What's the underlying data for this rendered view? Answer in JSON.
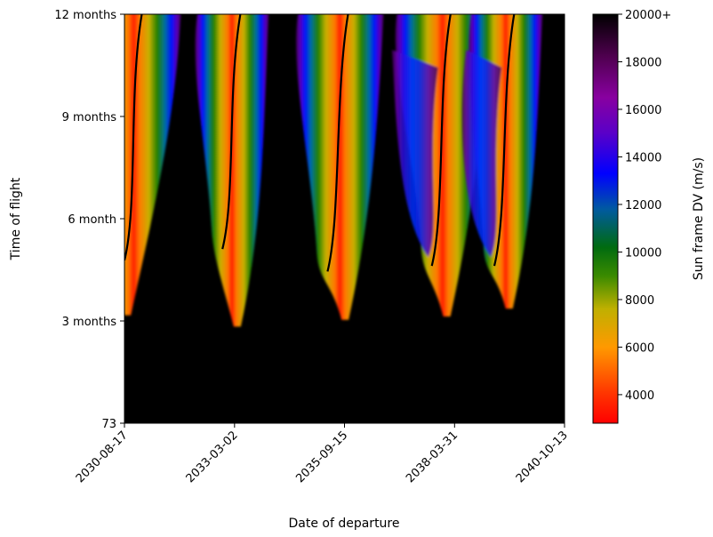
{
  "chart_data": {
    "type": "heatmap",
    "title": "",
    "xlabel": "Date of departure",
    "ylabel": "Time of flight",
    "xticks": [
      "2030-08-17",
      "2033-03-02",
      "2035-09-15",
      "2038-03-31",
      "2040-10-13"
    ],
    "yticks": [
      "73",
      "3 months",
      "6 month",
      "9 months",
      "12 months"
    ],
    "y_values_days": [
      73,
      91,
      182,
      274,
      365
    ],
    "colorbar": {
      "label": "Sun frame DV (m/s)",
      "ticks": [
        "4000",
        "6000",
        "8000",
        "10000",
        "12000",
        "14000",
        "16000",
        "18000",
        "20000+"
      ],
      "range": [
        2800,
        20000
      ],
      "colormap": [
        {
          "v": 2800,
          "color": "#ff0000"
        },
        {
          "v": 4000,
          "color": "#ff3200"
        },
        {
          "v": 6000,
          "color": "#ff9900"
        },
        {
          "v": 7600,
          "color": "#c0b000"
        },
        {
          "v": 9000,
          "color": "#3a8a00"
        },
        {
          "v": 10200,
          "color": "#006b10"
        },
        {
          "v": 11800,
          "color": "#005aa0"
        },
        {
          "v": 13300,
          "color": "#0000ff"
        },
        {
          "v": 15000,
          "color": "#5a00c8"
        },
        {
          "v": 16500,
          "color": "#8800a0"
        },
        {
          "v": 18200,
          "color": "#500050"
        },
        {
          "v": 20000,
          "color": "#000000"
        }
      ]
    },
    "background_color": "#000000",
    "windows": [
      {
        "departure": "2030-09-10",
        "tip_tof_days": 96,
        "ridge_low": [
          "2030-08-17",
          145
        ],
        "ridge_high": [
          "2031-01-10",
          365
        ]
      },
      {
        "departure": "2033-03-25",
        "tip_tof_days": 90,
        "ridge_low": [
          "2032-11-20",
          155
        ],
        "ridge_high": [
          "2033-04-20",
          365
        ]
      },
      {
        "departure": "2035-09-20",
        "tip_tof_days": 92,
        "ridge_low": [
          "2035-04-25",
          135
        ],
        "ridge_high": [
          "2035-10-15",
          365
        ]
      },
      {
        "departure": "2038-01-25",
        "tip_tof_days": 95,
        "ridge_low": [
          "2037-09-20",
          140
        ],
        "ridge_high": [
          "2038-02-25",
          365
        ]
      },
      {
        "departure": "2039-07-05",
        "tip_tof_days": 102,
        "ridge_low": [
          "2039-03-01",
          140
        ],
        "ridge_high": [
          "2039-08-15",
          365
        ]
      }
    ]
  }
}
